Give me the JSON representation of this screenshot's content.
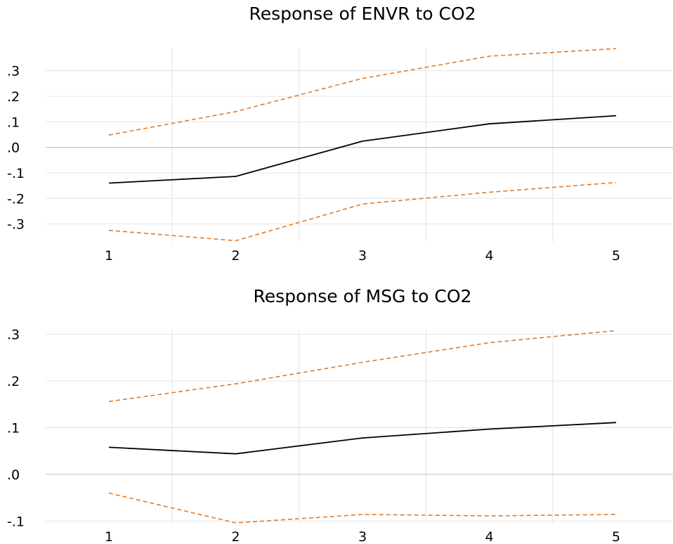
{
  "chart_data": [
    {
      "type": "line",
      "title": "Response of ENVR to CO2",
      "x": [
        1,
        2,
        3,
        4,
        5
      ],
      "xticks": [
        "1",
        "2",
        "3",
        "4",
        "5"
      ],
      "ylim": [
        -0.37,
        0.39
      ],
      "yticks": [
        0.3,
        0.2,
        0.1,
        0.0,
        -0.1,
        -0.2,
        -0.3
      ],
      "ytick_labels": [
        ".3",
        ".2",
        ".1",
        ".0",
        "-.1",
        "-.2",
        "-.3"
      ],
      "grid": true,
      "series": [
        {
          "values": [
            0.048,
            0.14,
            0.27,
            0.357,
            0.387
          ],
          "color": "#e07b2a",
          "style": "dashed"
        },
        {
          "values": [
            -0.14,
            -0.114,
            0.024,
            0.092,
            0.124
          ],
          "color": "#000000",
          "style": "solid"
        },
        {
          "values": [
            -0.325,
            -0.366,
            -0.222,
            -0.176,
            -0.138
          ],
          "color": "#e07b2a",
          "style": "dashed"
        }
      ]
    },
    {
      "type": "line",
      "title": "Response of MSG to CO2",
      "x": [
        1,
        2,
        3,
        4,
        5
      ],
      "xticks": [
        "1",
        "2",
        "3",
        "4",
        "5"
      ],
      "ylim": [
        -0.104,
        0.31
      ],
      "yticks": [
        0.3,
        0.2,
        0.1,
        0.0,
        -0.1
      ],
      "ytick_labels": [
        ".3",
        ".2",
        ".1",
        ".0",
        "-.1"
      ],
      "grid": true,
      "series": [
        {
          "values": [
            0.156,
            0.194,
            0.24,
            0.282,
            0.308
          ],
          "color": "#e07b2a",
          "style": "dashed"
        },
        {
          "values": [
            0.058,
            0.044,
            0.078,
            0.097,
            0.111
          ],
          "color": "#000000",
          "style": "solid"
        },
        {
          "values": [
            -0.04,
            -0.104,
            -0.086,
            -0.089,
            -0.086
          ],
          "color": "#e07b2a",
          "style": "dashed"
        }
      ]
    }
  ]
}
